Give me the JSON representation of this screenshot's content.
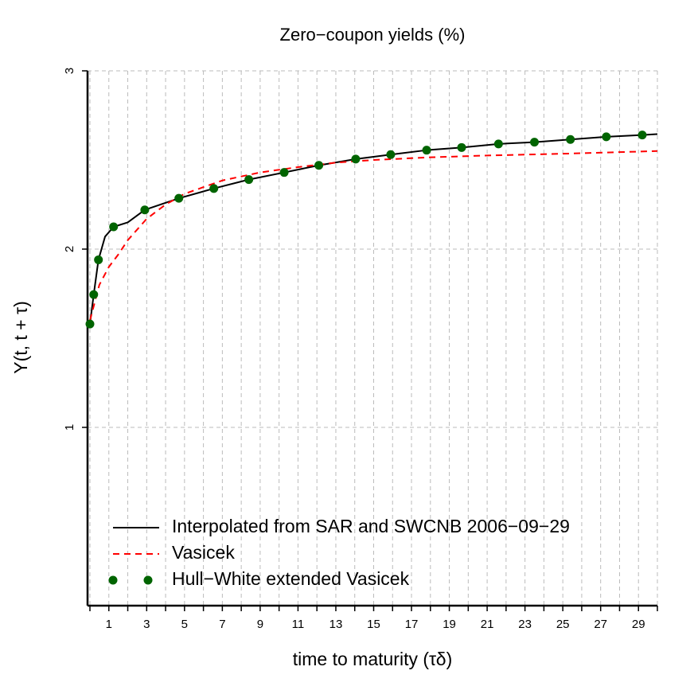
{
  "chart_data": {
    "type": "line",
    "title": "Zero−coupon yields (%)",
    "xlabel": "time to maturity (τδ)",
    "ylabel": "Y(t, t + τ)",
    "xlim": [
      0,
      30
    ],
    "ylim": [
      0,
      3
    ],
    "xticks": [
      1,
      3,
      5,
      7,
      9,
      11,
      13,
      15,
      17,
      19,
      21,
      23,
      25,
      27,
      29
    ],
    "xminorticks": [
      0,
      2,
      4,
      6,
      8,
      10,
      12,
      14,
      16,
      18,
      20,
      22,
      24,
      26,
      28,
      30
    ],
    "yticks": [
      1,
      2,
      3
    ],
    "grid": true,
    "legend": "bottom-left",
    "series": [
      {
        "name": "Interpolated from SAR and SWCNB 2006−09−29",
        "color": "#000000",
        "style": "solid",
        "x": [
          0,
          0.2,
          0.45,
          0.8,
          1.25,
          2,
          2.9,
          4.7,
          6.55,
          8.4,
          10.27,
          12.1,
          14.05,
          15.9,
          17.8,
          19.65,
          21.6,
          23.5,
          25.4,
          27.3,
          29.2,
          30
        ],
        "values": [
          1.58,
          1.745,
          1.94,
          2.07,
          2.125,
          2.15,
          2.22,
          2.285,
          2.34,
          2.39,
          2.43,
          2.47,
          2.505,
          2.53,
          2.555,
          2.57,
          2.59,
          2.6,
          2.615,
          2.63,
          2.64,
          2.645
        ]
      },
      {
        "name": "Vasicek",
        "color": "#ff0000",
        "style": "dashed",
        "x": [
          0,
          0.5,
          1,
          1.5,
          2,
          3,
          4,
          5,
          7,
          9,
          11,
          13,
          15,
          18,
          21,
          25,
          30
        ],
        "values": [
          1.6,
          1.8,
          1.9,
          1.97,
          2.05,
          2.17,
          2.25,
          2.31,
          2.385,
          2.43,
          2.46,
          2.485,
          2.5,
          2.515,
          2.525,
          2.535,
          2.55
        ]
      },
      {
        "name": "Hull−White extended Vasicek",
        "color": "#006400",
        "style": "points",
        "x": [
          0,
          0.2,
          0.45,
          1.25,
          2.9,
          4.7,
          6.55,
          8.4,
          10.27,
          12.1,
          14.05,
          15.9,
          17.8,
          19.65,
          21.6,
          23.5,
          25.4,
          27.3,
          29.2
        ],
        "values": [
          1.58,
          1.745,
          1.94,
          2.125,
          2.22,
          2.285,
          2.34,
          2.39,
          2.43,
          2.47,
          2.505,
          2.53,
          2.555,
          2.57,
          2.59,
          2.6,
          2.615,
          2.63,
          2.64
        ]
      }
    ]
  }
}
